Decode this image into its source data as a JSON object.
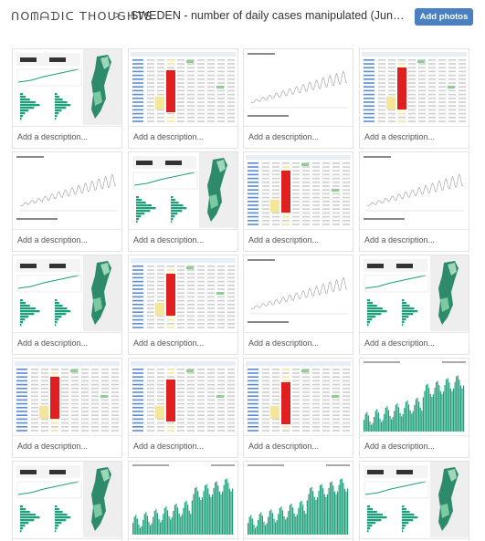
{
  "header": {
    "logo": "ᑎOᗰᗩᗪIᑕ THOUGHTS",
    "separator": ">",
    "title": "SWEDEN - number of daily cases manipulated (June 7 to June ...",
    "add_button": "Add photos"
  },
  "cards": [
    {
      "kind": "dashboard",
      "description": "Add a description..."
    },
    {
      "kind": "table",
      "description": "Add a description..."
    },
    {
      "kind": "linechart",
      "description": "Add a description..."
    },
    {
      "kind": "table",
      "description": "Add a description..."
    },
    {
      "kind": "linechart",
      "description": "Add a description..."
    },
    {
      "kind": "dashboard",
      "description": "Add a description..."
    },
    {
      "kind": "table",
      "description": "Add a description..."
    },
    {
      "kind": "linechart",
      "description": "Add a description..."
    },
    {
      "kind": "dashboard",
      "description": "Add a description..."
    },
    {
      "kind": "table",
      "description": "Add a description..."
    },
    {
      "kind": "linechart",
      "description": "Add a description..."
    },
    {
      "kind": "dashboard",
      "description": "Add a description..."
    },
    {
      "kind": "table",
      "description": "Add a description..."
    },
    {
      "kind": "table",
      "description": "Add a description..."
    },
    {
      "kind": "table",
      "description": "Add a description..."
    },
    {
      "kind": "barchart",
      "description": "Add a description..."
    },
    {
      "kind": "dashboard",
      "description": ""
    },
    {
      "kind": "barchart",
      "description": ""
    },
    {
      "kind": "barchart",
      "description": ""
    },
    {
      "kind": "dashboard",
      "description": ""
    }
  ],
  "colors": {
    "accent": "#4a7fc1",
    "green": "#1e9e7a",
    "red": "#e02020",
    "yellow": "#f3e59a"
  }
}
